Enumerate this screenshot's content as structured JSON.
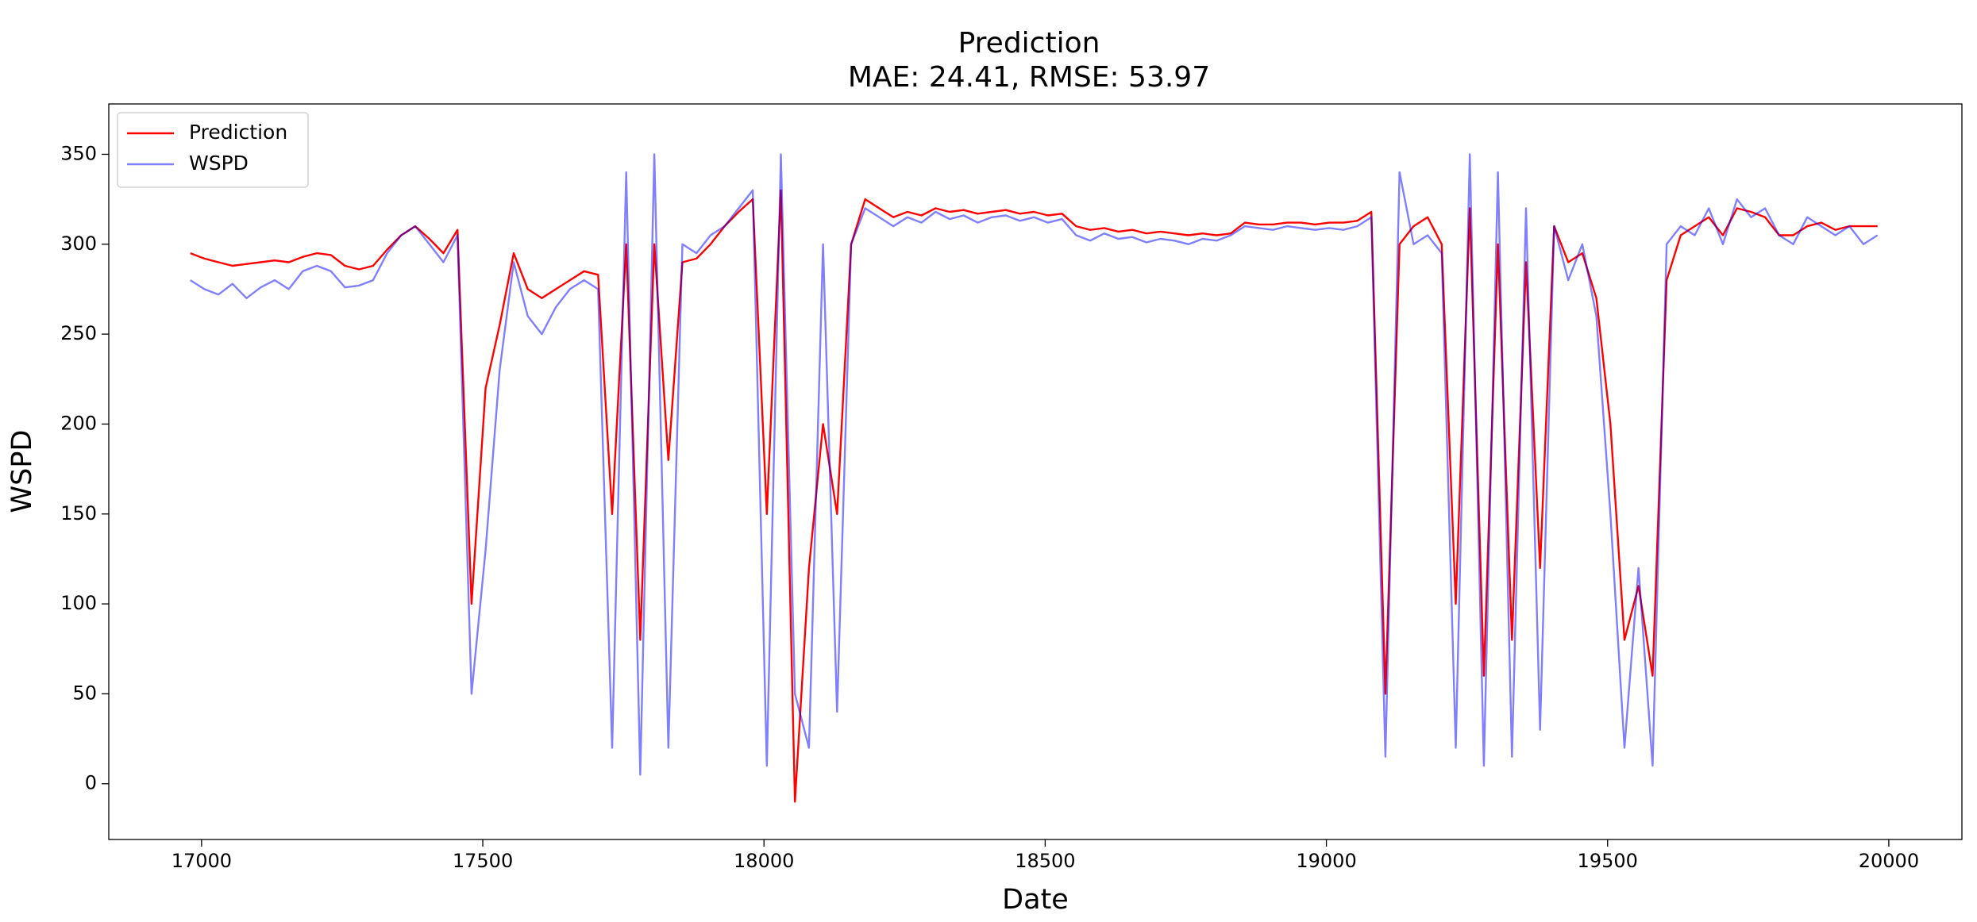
{
  "chart_data": {
    "type": "line",
    "title": "Prediction",
    "subtitle": "MAE: 24.41, RMSE: 53.97",
    "x_label": "Date",
    "y_label": "WSPD",
    "x": [
      16980,
      17005,
      17030,
      17055,
      17080,
      17105,
      17130,
      17155,
      17180,
      17205,
      17230,
      17255,
      17280,
      17305,
      17330,
      17355,
      17380,
      17405,
      17430,
      17455,
      17480,
      17505,
      17530,
      17555,
      17580,
      17605,
      17630,
      17655,
      17680,
      17705,
      17730,
      17755,
      17780,
      17805,
      17830,
      17855,
      17880,
      17905,
      17930,
      17955,
      17980,
      18005,
      18030,
      18055,
      18080,
      18105,
      18130,
      18155,
      18180,
      18205,
      18230,
      18255,
      18280,
      18305,
      18330,
      18355,
      18380,
      18405,
      18430,
      18455,
      18480,
      18505,
      18530,
      18555,
      18580,
      18605,
      18630,
      18655,
      18680,
      18705,
      18730,
      18755,
      18780,
      18805,
      18830,
      18855,
      18880,
      18905,
      18930,
      18955,
      18980,
      19005,
      19030,
      19055,
      19080,
      19105,
      19130,
      19155,
      19180,
      19205,
      19230,
      19255,
      19280,
      19305,
      19330,
      19355,
      19380,
      19405,
      19430,
      19455,
      19480,
      19505,
      19530,
      19555,
      19580,
      19605,
      19630,
      19655,
      19680,
      19705,
      19730,
      19755,
      19780,
      19805,
      19830,
      19855,
      19880,
      19905,
      19930,
      19955,
      19980
    ],
    "series": [
      {
        "name": "Prediction",
        "color": "#ff0000",
        "alpha": 1,
        "values": [
          295,
          292,
          290,
          288,
          289,
          290,
          291,
          290,
          293,
          295,
          294,
          288,
          286,
          288,
          297,
          305,
          310,
          303,
          295,
          308,
          100,
          220,
          255,
          295,
          275,
          270,
          275,
          280,
          285,
          283,
          150,
          300,
          80,
          300,
          180,
          290,
          292,
          300,
          310,
          318,
          325,
          150,
          330,
          -10,
          120,
          200,
          150,
          300,
          325,
          320,
          315,
          318,
          316,
          320,
          318,
          319,
          317,
          318,
          319,
          317,
          318,
          316,
          317,
          310,
          308,
          309,
          307,
          308,
          306,
          307,
          306,
          305,
          306,
          305,
          306,
          312,
          311,
          311,
          312,
          312,
          311,
          312,
          312,
          313,
          318,
          50,
          300,
          310,
          315,
          300,
          100,
          320,
          60,
          300,
          80,
          290,
          120,
          310,
          290,
          295,
          270,
          200,
          80,
          110,
          60,
          280,
          305,
          310,
          315,
          305,
          320,
          318,
          315,
          305,
          305,
          310,
          312,
          308,
          310,
          310,
          310
        ]
      },
      {
        "name": "WSPD",
        "color": "#0000ff",
        "alpha": 0.5,
        "values": [
          280,
          275,
          272,
          278,
          270,
          276,
          280,
          275,
          285,
          288,
          285,
          276,
          277,
          280,
          295,
          305,
          310,
          300,
          290,
          305,
          50,
          130,
          230,
          290,
          260,
          250,
          265,
          275,
          280,
          275,
          20,
          340,
          5,
          350,
          20,
          300,
          295,
          305,
          310,
          320,
          330,
          10,
          350,
          50,
          20,
          300,
          40,
          300,
          320,
          315,
          310,
          315,
          312,
          318,
          314,
          316,
          312,
          315,
          316,
          313,
          315,
          312,
          314,
          305,
          302,
          306,
          303,
          304,
          301,
          303,
          302,
          300,
          303,
          302,
          305,
          310,
          309,
          308,
          310,
          309,
          308,
          309,
          308,
          310,
          315,
          15,
          340,
          300,
          305,
          295,
          20,
          350,
          10,
          340,
          15,
          320,
          30,
          310,
          280,
          300,
          260,
          150,
          20,
          120,
          10,
          300,
          310,
          305,
          320,
          300,
          325,
          315,
          320,
          305,
          300,
          315,
          310,
          305,
          310,
          300,
          305
        ]
      }
    ],
    "xlim": [
      16835,
      20130
    ],
    "ylim": [
      -31,
      378
    ],
    "xticks": [
      17000,
      17500,
      18000,
      18500,
      19000,
      19500,
      20000
    ],
    "yticks": [
      0,
      50,
      100,
      150,
      200,
      250,
      300,
      350
    ],
    "grid": false,
    "legend_position": "upper-left"
  }
}
